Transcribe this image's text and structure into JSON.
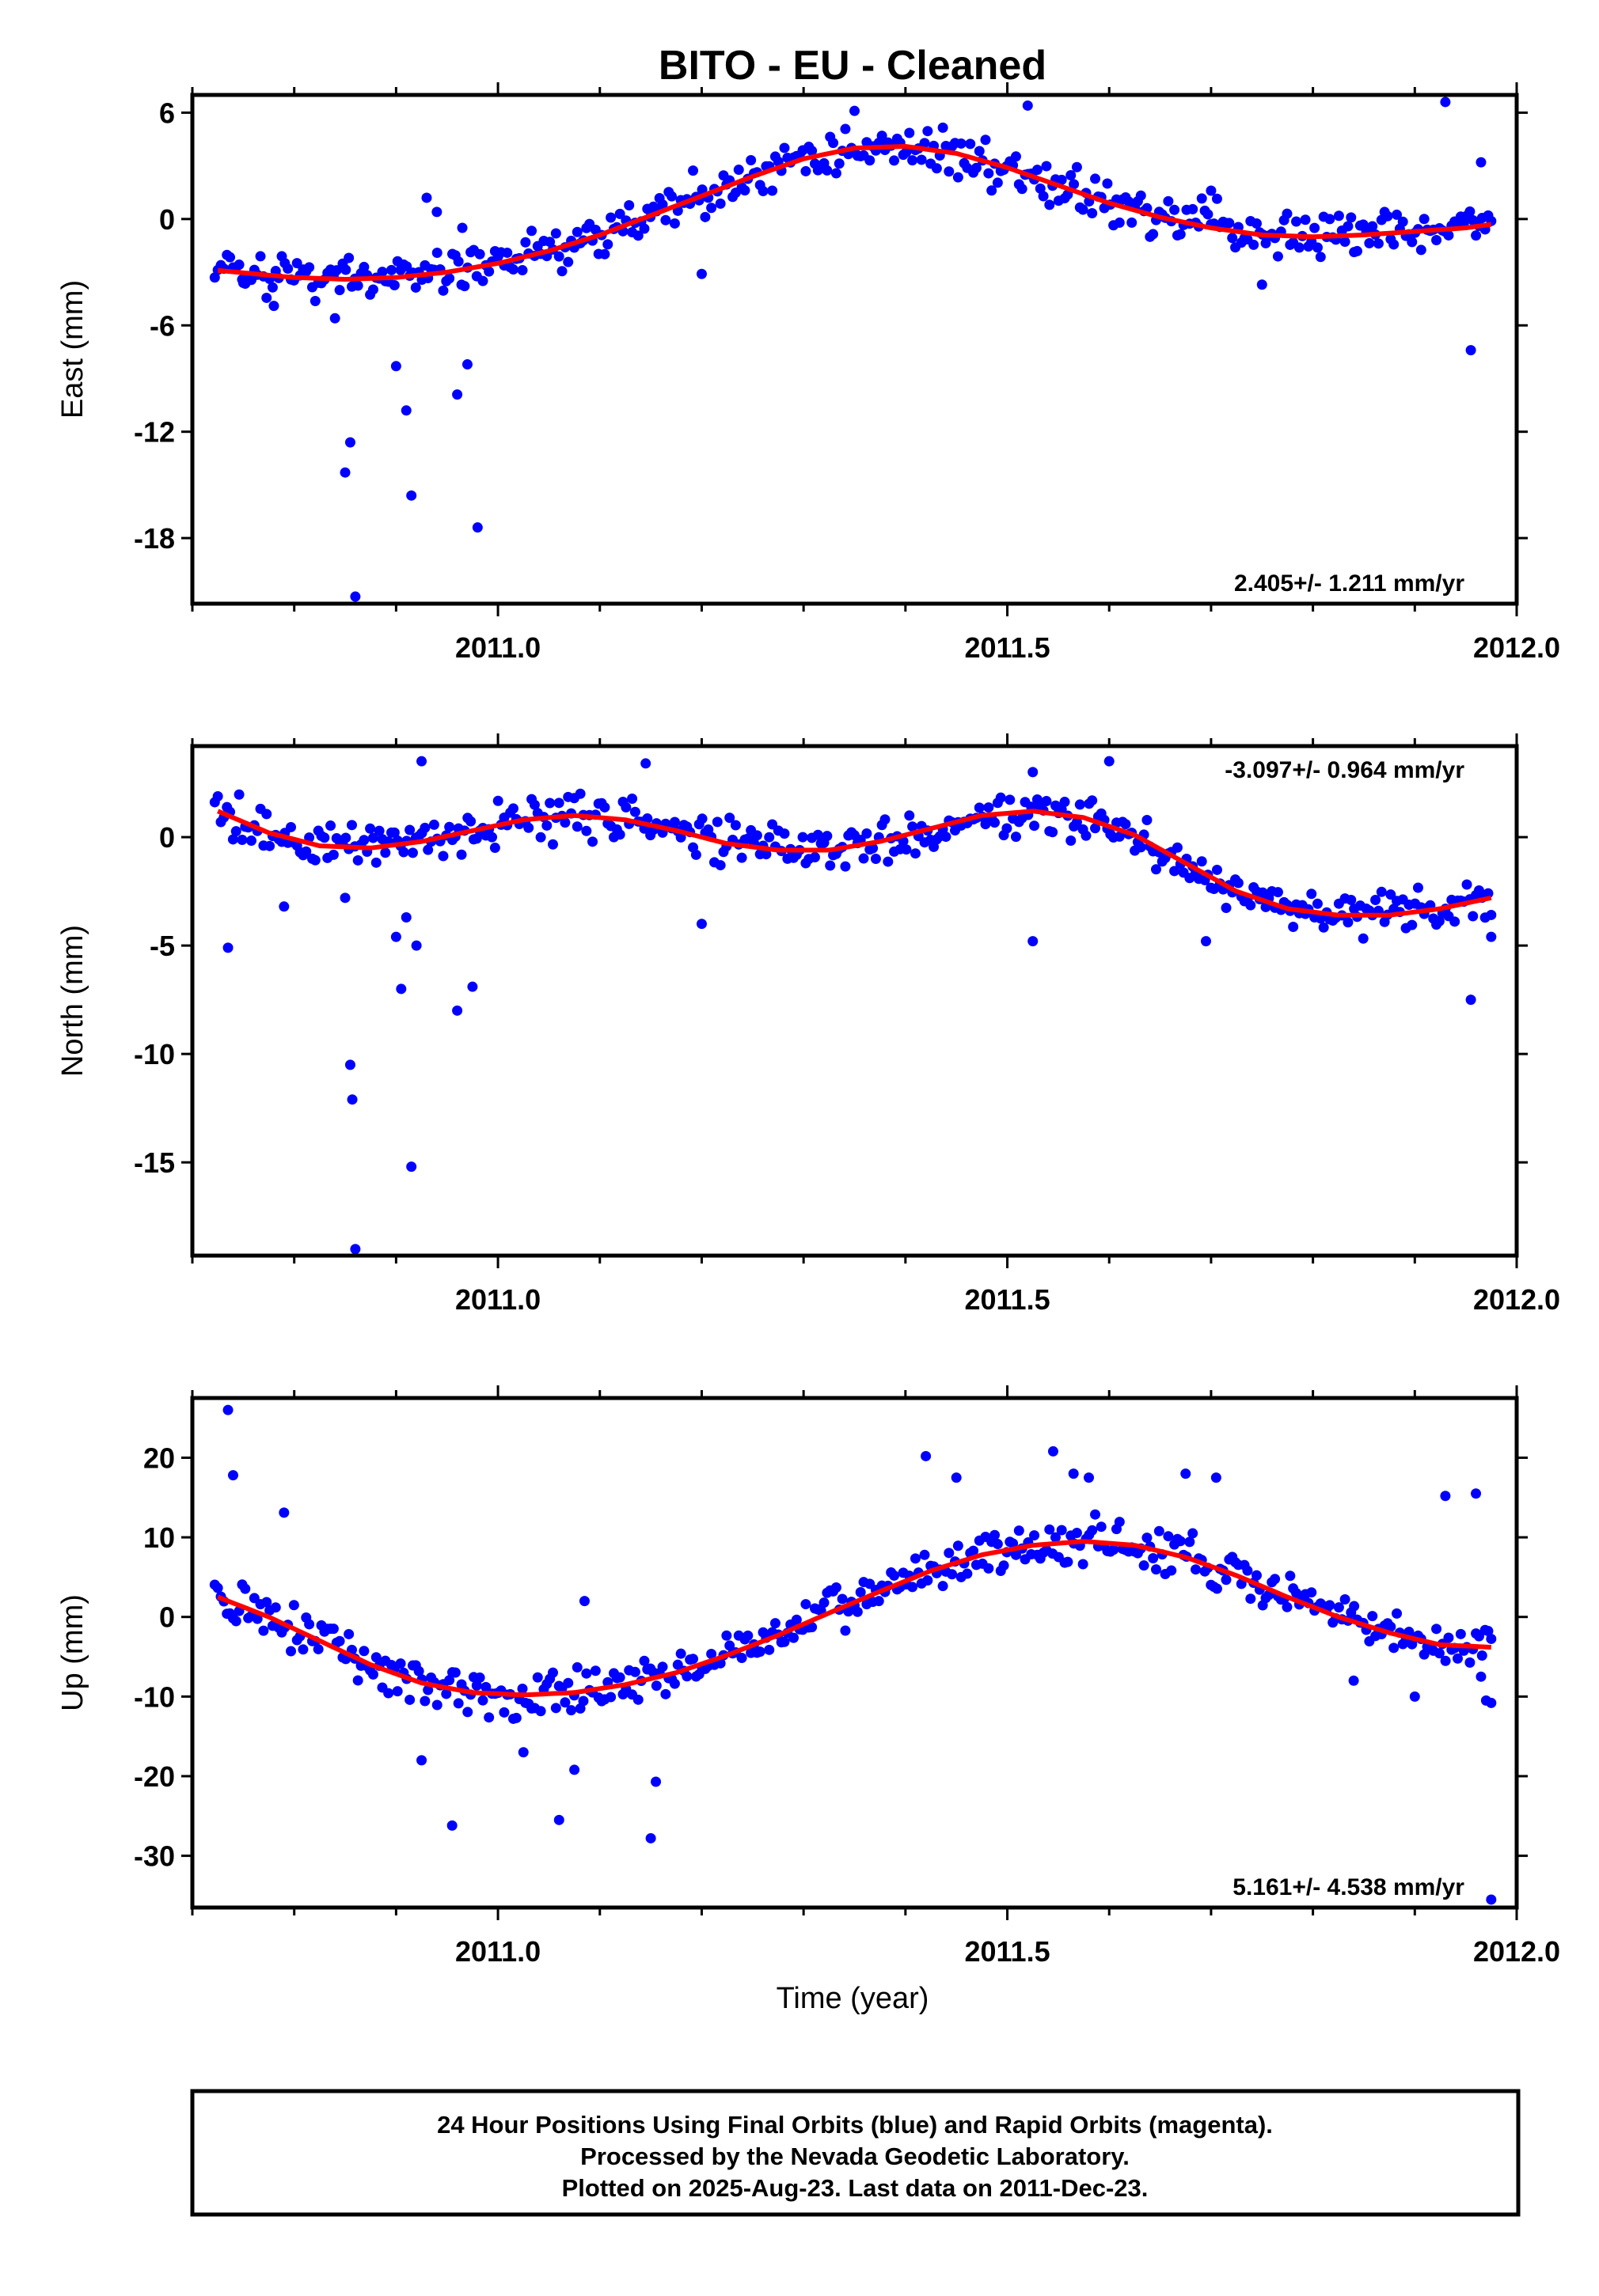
{
  "title": "BITO  - EU - Cleaned",
  "xlabel": "Time (year)",
  "footer": {
    "line1": "24 Hour Positions Using Final Orbits (blue) and Rapid Orbits (magenta).",
    "line2": "Processed by the Nevada Geodetic Laboratory.",
    "line3": "Plotted on 2025-Aug-23. Last data on 2011-Dec-23."
  },
  "colors": {
    "points": "#0000ff",
    "fit": "#ff0000",
    "frame": "#000000"
  },
  "chart_data": [
    {
      "type": "scatter",
      "component": "east",
      "ylabel": "East (mm)",
      "rate_label": "2.405+/- 1.211 mm/yr",
      "xlim": [
        2010.7,
        2012.0
      ],
      "ylim": [
        -21.7,
        7.0
      ],
      "xticks": [
        2011.0,
        2011.5,
        2012.0
      ],
      "xticklabels": [
        "2011.0",
        "2011.5",
        "2012.0"
      ],
      "yticks": [
        6,
        0,
        -6,
        -12,
        -18
      ],
      "yticklabels": [
        "6",
        "0",
        "-6",
        "-12",
        "-18"
      ],
      "fit": {
        "x": [
          2010.725,
          2010.8,
          2010.85,
          2010.9,
          2010.95,
          2011.0,
          2011.05,
          2011.1,
          2011.15,
          2011.2,
          2011.25,
          2011.3,
          2011.35,
          2011.4,
          2011.45,
          2011.5,
          2011.55,
          2011.6,
          2011.65,
          2011.7,
          2011.75,
          2011.8,
          2011.85,
          2011.9,
          2011.95,
          2011.975
        ],
        "y": [
          -2.9,
          -3.3,
          -3.4,
          -3.3,
          -3.0,
          -2.5,
          -1.8,
          -0.9,
          0.2,
          1.3,
          2.4,
          3.4,
          4.0,
          4.1,
          3.7,
          2.9,
          1.9,
          0.9,
          0.1,
          -0.5,
          -0.9,
          -1.0,
          -0.9,
          -0.7,
          -0.5,
          -0.3
        ]
      },
      "outliers": [
        {
          "x": 2010.75,
          "y": -3.6
        },
        {
          "x": 2010.78,
          "y": -4.9
        },
        {
          "x": 2010.84,
          "y": -5.6
        },
        {
          "x": 2010.85,
          "y": -14.3
        },
        {
          "x": 2010.855,
          "y": -12.6
        },
        {
          "x": 2010.86,
          "y": -21.3
        },
        {
          "x": 2010.9,
          "y": -8.3
        },
        {
          "x": 2010.91,
          "y": -10.8
        },
        {
          "x": 2010.915,
          "y": -15.6
        },
        {
          "x": 2010.93,
          "y": 1.2
        },
        {
          "x": 2010.94,
          "y": 0.4
        },
        {
          "x": 2010.96,
          "y": -9.9
        },
        {
          "x": 2010.965,
          "y": -0.5
        },
        {
          "x": 2010.97,
          "y": -8.2
        },
        {
          "x": 2010.98,
          "y": -17.4
        },
        {
          "x": 2011.2,
          "y": -3.1
        },
        {
          "x": 2011.35,
          "y": 6.1
        },
        {
          "x": 2011.52,
          "y": 6.4
        },
        {
          "x": 2011.7,
          "y": 1.6
        },
        {
          "x": 2011.75,
          "y": -3.7
        },
        {
          "x": 2011.93,
          "y": 6.6
        },
        {
          "x": 2011.955,
          "y": -7.4
        },
        {
          "x": 2011.965,
          "y": 3.2
        }
      ]
    },
    {
      "type": "scatter",
      "component": "north",
      "ylabel": "North (mm)",
      "rate_label": "-3.097+/- 0.964 mm/yr",
      "xlim": [
        2010.7,
        2012.0
      ],
      "ylim": [
        -19.3,
        4.2
      ],
      "xticks": [
        2011.0,
        2011.5,
        2012.0
      ],
      "xticklabels": [
        "2011.0",
        "2011.5",
        "2012.0"
      ],
      "yticks": [
        0,
        -5,
        -10,
        -15
      ],
      "yticklabels": [
        "0",
        "-5",
        "-10",
        "-15"
      ],
      "fit": {
        "x": [
          2010.725,
          2010.775,
          2010.825,
          2010.875,
          2010.925,
          2010.975,
          2011.025,
          2011.075,
          2011.125,
          2011.175,
          2011.225,
          2011.275,
          2011.325,
          2011.375,
          2011.425,
          2011.475,
          2011.525,
          2011.575,
          2011.625,
          2011.675,
          2011.725,
          2011.775,
          2011.825,
          2011.875,
          2011.925,
          2011.975
        ],
        "y": [
          1.2,
          0.2,
          -0.4,
          -0.5,
          -0.2,
          0.3,
          0.8,
          1.0,
          0.8,
          0.3,
          -0.3,
          -0.6,
          -0.6,
          -0.2,
          0.4,
          1.0,
          1.2,
          0.9,
          0.1,
          -1.2,
          -2.5,
          -3.3,
          -3.6,
          -3.6,
          -3.3,
          -2.8
        ]
      },
      "outliers": [
        {
          "x": 2010.735,
          "y": -5.1
        },
        {
          "x": 2010.79,
          "y": -3.2
        },
        {
          "x": 2010.85,
          "y": -2.8
        },
        {
          "x": 2010.855,
          "y": -10.5
        },
        {
          "x": 2010.857,
          "y": -12.1
        },
        {
          "x": 2010.86,
          "y": -19.0
        },
        {
          "x": 2010.9,
          "y": -4.6
        },
        {
          "x": 2010.905,
          "y": -7.0
        },
        {
          "x": 2010.91,
          "y": -3.7
        },
        {
          "x": 2010.915,
          "y": -15.2
        },
        {
          "x": 2010.92,
          "y": -5.0
        },
        {
          "x": 2010.925,
          "y": 3.5
        },
        {
          "x": 2010.96,
          "y": -8.0
        },
        {
          "x": 2010.975,
          "y": -6.9
        },
        {
          "x": 2011.145,
          "y": 3.4
        },
        {
          "x": 2011.2,
          "y": -4.0
        },
        {
          "x": 2011.525,
          "y": 3.0
        },
        {
          "x": 2011.525,
          "y": -4.8
        },
        {
          "x": 2011.6,
          "y": 3.5
        },
        {
          "x": 2011.695,
          "y": -4.8
        },
        {
          "x": 2011.955,
          "y": -7.5
        },
        {
          "x": 2011.975,
          "y": -4.6
        }
      ]
    },
    {
      "type": "scatter",
      "component": "up",
      "ylabel": "Up (mm)",
      "rate_label": "5.161+/- 4.538 mm/yr",
      "xlim": [
        2010.7,
        2012.0
      ],
      "ylim": [
        -36.5,
        27.5
      ],
      "xticks": [
        2011.0,
        2011.5,
        2012.0
      ],
      "xticklabels": [
        "2011.0",
        "2011.5",
        "2012.0"
      ],
      "yticks": [
        20,
        10,
        0,
        -10,
        -20,
        -30
      ],
      "yticklabels": [
        "20",
        "10",
        "0",
        "-10",
        "-20",
        "-30"
      ],
      "fit": {
        "x": [
          2010.725,
          2010.775,
          2010.825,
          2010.875,
          2010.925,
          2010.975,
          2011.025,
          2011.075,
          2011.125,
          2011.175,
          2011.225,
          2011.275,
          2011.325,
          2011.375,
          2011.425,
          2011.475,
          2011.525,
          2011.575,
          2011.625,
          2011.675,
          2011.725,
          2011.775,
          2011.825,
          2011.875,
          2011.925,
          2011.975
        ],
        "y": [
          2.5,
          0.0,
          -3.0,
          -6.0,
          -8.3,
          -9.5,
          -9.8,
          -9.5,
          -8.5,
          -7.0,
          -4.8,
          -2.3,
          0.5,
          3.2,
          5.8,
          7.8,
          9.0,
          9.5,
          9.0,
          7.5,
          5.2,
          2.5,
          0.0,
          -2.0,
          -3.5,
          -3.8
        ]
      },
      "outliers": [
        {
          "x": 2010.735,
          "y": 26.0
        },
        {
          "x": 2010.74,
          "y": 17.8
        },
        {
          "x": 2010.79,
          "y": 13.1
        },
        {
          "x": 2010.925,
          "y": -18.0
        },
        {
          "x": 2010.955,
          "y": -26.2
        },
        {
          "x": 2011.025,
          "y": -17.0
        },
        {
          "x": 2011.06,
          "y": -25.5
        },
        {
          "x": 2011.075,
          "y": -19.2
        },
        {
          "x": 2011.085,
          "y": 2.0
        },
        {
          "x": 2011.15,
          "y": -27.8
        },
        {
          "x": 2011.155,
          "y": -20.7
        },
        {
          "x": 2011.42,
          "y": 20.2
        },
        {
          "x": 2011.45,
          "y": 17.5
        },
        {
          "x": 2011.545,
          "y": 20.8
        },
        {
          "x": 2011.565,
          "y": 18.0
        },
        {
          "x": 2011.58,
          "y": 17.5
        },
        {
          "x": 2011.675,
          "y": 18.0
        },
        {
          "x": 2011.705,
          "y": 17.5
        },
        {
          "x": 2011.84,
          "y": -8.0
        },
        {
          "x": 2011.9,
          "y": -10.0
        },
        {
          "x": 2011.93,
          "y": 15.2
        },
        {
          "x": 2011.96,
          "y": 15.5
        },
        {
          "x": 2011.965,
          "y": -7.5
        },
        {
          "x": 2011.97,
          "y": -10.5
        },
        {
          "x": 2011.975,
          "y": -35.5
        },
        {
          "x": 2011.975,
          "y": -10.8
        }
      ]
    }
  ]
}
